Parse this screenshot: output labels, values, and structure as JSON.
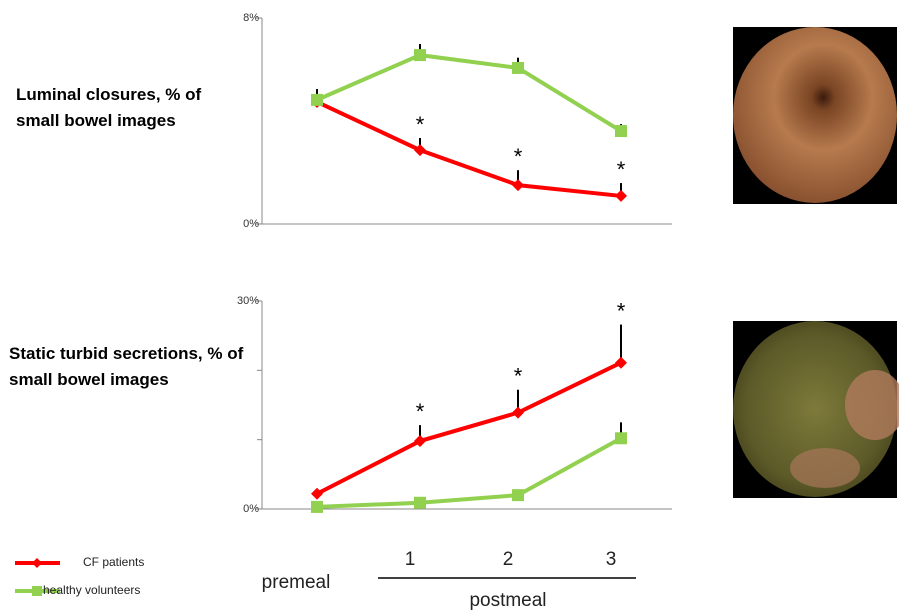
{
  "chart_data": [
    {
      "type": "line",
      "ylabel": "Luminal closures, % of small bowel images",
      "categories": [
        null,
        null,
        null,
        null
      ],
      "annotations": [
        null,
        "*",
        "*",
        "*"
      ],
      "ylim": [
        0,
        8
      ],
      "yticks": [
        {
          "value": 0,
          "label": "0%"
        },
        {
          "value": 8,
          "label": "8%"
        }
      ],
      "series": [
        {
          "color": "#ff0000",
          "marker": "diamond",
          "values": [
            4.74,
            2.87,
            1.51,
            1.09
          ],
          "errors": [
            0.5,
            0.47,
            0.58,
            0.5
          ]
        },
        {
          "color": "#92d050",
          "marker": "square",
          "values": [
            4.82,
            6.56,
            6.06,
            3.61
          ],
          "errors": [
            0.3,
            0.43,
            0.4,
            0.27
          ]
        }
      ]
    },
    {
      "type": "line",
      "ylabel": "Static turbid secretions, % of small bowel images",
      "categories": [
        "premeal",
        "1",
        "2",
        "3"
      ],
      "xlabel": "postmeal",
      "annotations": [
        null,
        "*",
        "*",
        "*"
      ],
      "ylim": [
        0,
        30
      ],
      "yticks": [
        {
          "value": 0,
          "label": "0%"
        },
        {
          "value": 30,
          "label": "30%"
        }
      ],
      "minor_yticks": [
        10,
        20
      ],
      "series": [
        {
          "name": "CF patients",
          "color": "#ff0000",
          "marker": "diamond",
          "values": [
            2.2,
            9.8,
            13.9,
            21.1
          ],
          "errors": [
            0,
            2.3,
            3.3,
            5.5
          ]
        },
        {
          "name": "healthy volunteers",
          "color": "#92d050",
          "marker": "square",
          "values": [
            0.3,
            0.9,
            2.0,
            10.2
          ],
          "errors": [
            0,
            0,
            0,
            2.3
          ]
        }
      ]
    }
  ]
}
